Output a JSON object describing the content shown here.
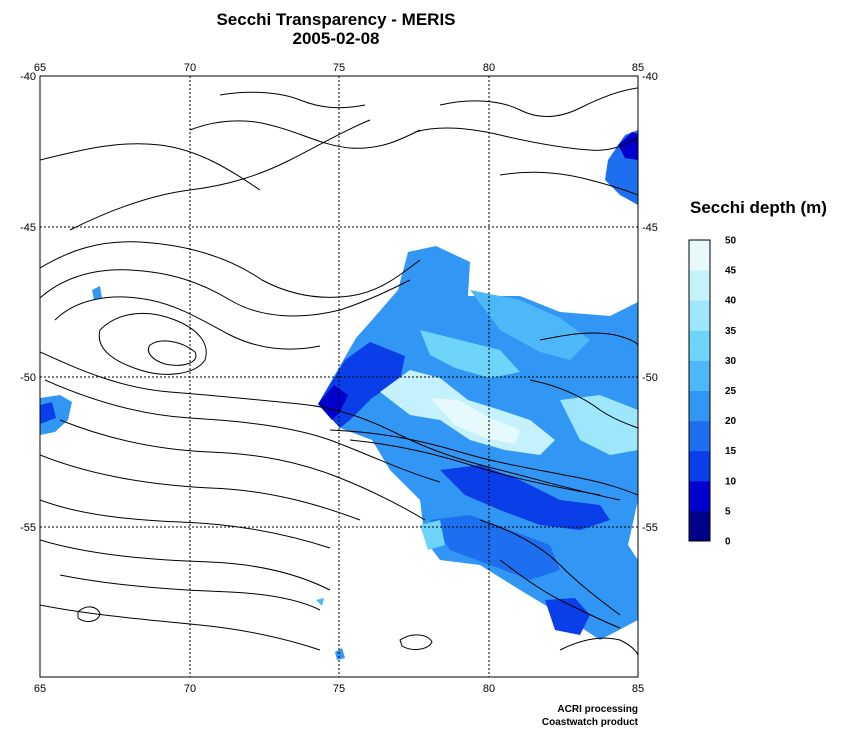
{
  "title": "Secchi Transparency - MERIS",
  "date": "2005-02-08",
  "map": {
    "lon_range": [
      65,
      85
    ],
    "lat_range": [
      -40,
      -60
    ],
    "lon_ticks": [
      "65",
      "70",
      "75",
      "80",
      "85"
    ],
    "lat_ticks": [
      "-40",
      "-45",
      "-50",
      "-55"
    ],
    "gridlines": true
  },
  "legend": {
    "title": "Secchi depth (m)",
    "ticks": [
      "50",
      "45",
      "40",
      "35",
      "30",
      "25",
      "20",
      "15",
      "10",
      "5",
      "0"
    ],
    "colors": [
      "#00008b",
      "#0000cd",
      "#0a3ee8",
      "#1e6ff0",
      "#3296f5",
      "#4db8f7",
      "#6fd4fa",
      "#9de6fb",
      "#c4f1fc",
      "#e6fafe"
    ]
  },
  "credits": {
    "line1": "ACRI processing",
    "line2": "Coastwatch product"
  }
}
